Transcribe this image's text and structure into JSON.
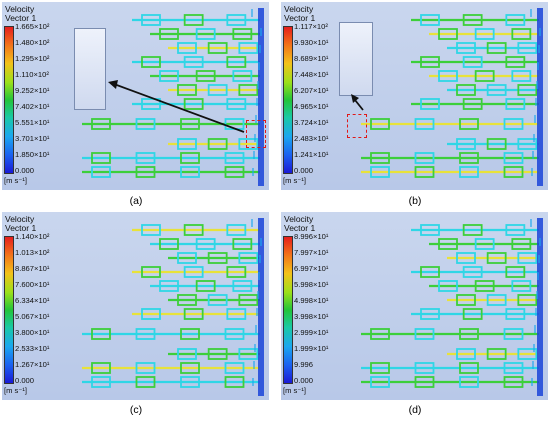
{
  "panels": [
    {
      "label": "(a)",
      "title_line1": "Velocity",
      "title_line2": "Vector 1",
      "ticks": [
        "1.665×10²",
        "1.480×10²",
        "1.295×10²",
        "1.110×10²",
        "9.252×10¹",
        "7.402×10¹",
        "5.551×10¹",
        "3.701×10¹",
        "1.850×10¹",
        "0.000"
      ],
      "unit": "[m s⁻¹]"
    },
    {
      "label": "(b)",
      "title_line1": "Velocity",
      "title_line2": "Vector 1",
      "ticks": [
        "1.117×10²",
        "9.930×10¹",
        "8.689×10¹",
        "7.448×10¹",
        "6.207×10¹",
        "4.965×10¹",
        "3.724×10¹",
        "2.483×10¹",
        "1.241×10¹",
        "0.000"
      ],
      "unit": "[m s⁻¹]"
    },
    {
      "label": "(c)",
      "title_line1": "Velocity",
      "title_line2": "Vector 1",
      "ticks": [
        "1.140×10²",
        "1.013×10²",
        "8.867×10¹",
        "7.600×10¹",
        "6.334×10¹",
        "5.067×10¹",
        "3.800×10¹",
        "2.533×10¹",
        "1.267×10¹",
        "0.000"
      ],
      "unit": "[m s⁻¹]"
    },
    {
      "label": "(d)",
      "title_line1": "Velocity",
      "title_line2": "Vector 1",
      "ticks": [
        "8.996×10¹",
        "7.997×10¹",
        "6.997×10¹",
        "5.998×10¹",
        "4.998×10¹",
        "3.998×10¹",
        "2.999×10¹",
        "1.999×10¹",
        "9.996",
        "0.000"
      ],
      "unit": "[m s⁻¹]"
    }
  ],
  "colors": {
    "pipe_cyan": "#2fd6e6",
    "pipe_green": "#3ccf3a",
    "pipe_yellow": "#e8e23a",
    "outlet_blue": "#1a44d8",
    "highlight_red": "#e01818"
  }
}
